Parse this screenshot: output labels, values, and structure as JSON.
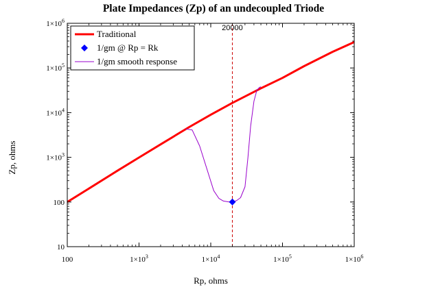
{
  "chart_data": {
    "type": "line",
    "title": "Plate Impedances (Zp) of an undecoupled Triode",
    "xlabel": "Rp, ohms",
    "ylabel": "Zp, ohms",
    "xscale": "log",
    "yscale": "log",
    "xlim": [
      100,
      1000000
    ],
    "ylim": [
      10,
      1000000
    ],
    "x_ticks": [
      {
        "value": 100,
        "label": "100"
      },
      {
        "value": 1000,
        "label": "1×10",
        "exp": "3"
      },
      {
        "value": 10000,
        "label": "1×10",
        "exp": "4"
      },
      {
        "value": 100000,
        "label": "1×10",
        "exp": "5"
      },
      {
        "value": 1000000,
        "label": "1×10",
        "exp": "6"
      }
    ],
    "y_ticks": [
      {
        "value": 10,
        "label": "10"
      },
      {
        "value": 100,
        "label": "100"
      },
      {
        "value": 1000,
        "label": "1×10",
        "exp": "3"
      },
      {
        "value": 10000,
        "label": "1×10",
        "exp": "4"
      },
      {
        "value": 100000,
        "label": "1×10",
        "exp": "5"
      },
      {
        "value": 1000000,
        "label": "1×10",
        "exp": "6"
      }
    ],
    "annotation": {
      "x": 20000,
      "label": "20000",
      "color": "#cc0000"
    },
    "legend": {
      "placement": "top-left",
      "entries": [
        {
          "label": "Traditional",
          "color": "#ff0000",
          "style": "line"
        },
        {
          "label": "1/gm @ Rp = Rk",
          "color": "#0000ff",
          "style": "diamond"
        },
        {
          "label": "1/gm smooth response",
          "color": "#9900cc",
          "style": "line"
        }
      ]
    },
    "series": [
      {
        "name": "Traditional",
        "color": "#ff0000",
        "x": [
          100,
          200,
          500,
          1000,
          2000,
          5000,
          10000,
          20000,
          50000,
          100000,
          200000,
          500000,
          1000000
        ],
        "y": [
          100,
          200,
          500,
          990,
          1950,
          4750,
          9000,
          16500,
          35000,
          60000,
          110000,
          230000,
          380000
        ]
      },
      {
        "name": "1/gm @ Rp = Rk",
        "color": "#0000ff",
        "x": [
          20000
        ],
        "y": [
          100
        ]
      },
      {
        "name": "1/gm smooth response",
        "color": "#9900cc",
        "x": [
          4500,
          5500,
          7000,
          9000,
          11000,
          13000,
          15000,
          18000,
          20000,
          23000,
          26000,
          30000,
          33000,
          36000,
          40000,
          44000,
          48000,
          50000
        ],
        "y": [
          4300,
          4100,
          1800,
          500,
          180,
          120,
          105,
          100,
          100,
          108,
          125,
          220,
          1000,
          5000,
          18000,
          32000,
          37000,
          38000
        ]
      }
    ]
  }
}
